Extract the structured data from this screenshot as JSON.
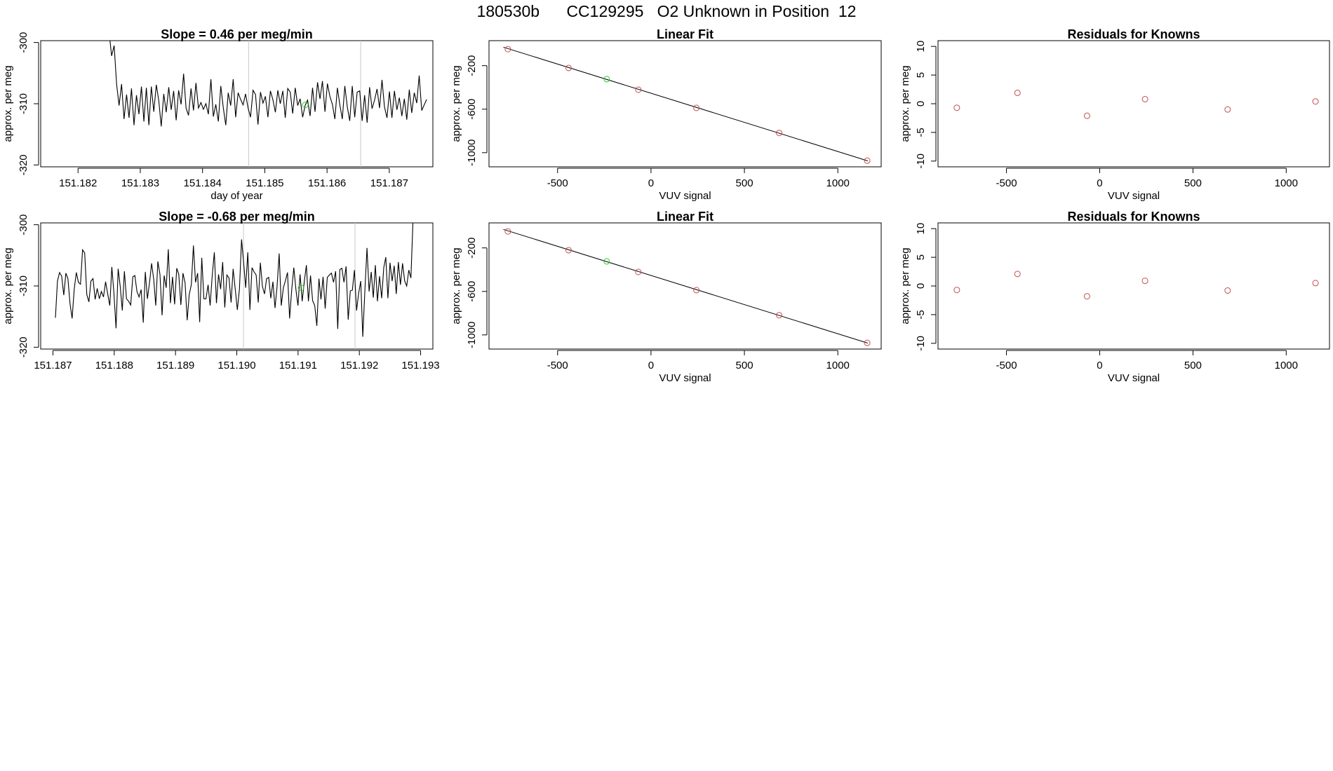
{
  "page": {
    "title": "180530b      CC129295   O2 Unknown in Position  12"
  },
  "colors": {
    "trace": "#000000",
    "known_point": "#c0504d",
    "unknown_point": "#2ecc2e",
    "divider": "#c8c8c8",
    "fit_line": "#000000"
  },
  "chart_data": [
    {
      "type": "line",
      "panel": "time-series-1",
      "title": "Slope =  0.46  per meg/min",
      "xlabel": "day of year",
      "ylabel": "approx. per meg",
      "xlim": [
        151.1814,
        151.1877
      ],
      "ylim": [
        -320.3,
        -299.7
      ],
      "xticks": [
        "151.182",
        "151.183",
        "151.184",
        "151.185",
        "151.186",
        "151.187"
      ],
      "yticks": [
        "-300",
        "-310",
        "-320"
      ],
      "x_start": 151.1825,
      "x_end": 151.1876,
      "values": [
        -298.5,
        -302.2,
        -300.5,
        -306.8,
        -310.3,
        -306.8,
        -312.5,
        -308.5,
        -312.3,
        -307.5,
        -313.5,
        -308.6,
        -311.7,
        -307.2,
        -312.9,
        -307.4,
        -313.5,
        -307.2,
        -311.3,
        -306.9,
        -309.5,
        -313.7,
        -308.4,
        -311.4,
        -307.3,
        -311.0,
        -307.9,
        -312.7,
        -307.8,
        -310.1,
        -305.1,
        -310.7,
        -311.9,
        -307.5,
        -311.1,
        -306.6,
        -310.7,
        -309.8,
        -310.9,
        -310.0,
        -311.7,
        -306.0,
        -312.1,
        -310.1,
        -312.9,
        -307.1,
        -310.6,
        -313.5,
        -308.2,
        -310.3,
        -306.0,
        -312.2,
        -308.2,
        -309.3,
        -310.2,
        -308.4,
        -310.7,
        -312.2,
        -307.8,
        -308.5,
        -313.4,
        -308.1,
        -309.9,
        -308.8,
        -312.2,
        -307.9,
        -309.3,
        -311.4,
        -307.8,
        -310.0,
        -307.9,
        -312.3,
        -307.5,
        -308.1,
        -311.6,
        -307.4,
        -310.3,
        -309.2,
        -312.2,
        -310.3,
        -309.4,
        -312.0,
        -307.4,
        -311.3,
        -306.5,
        -309.2,
        -306.3,
        -311.3,
        -306.7,
        -308.8,
        -310.1,
        -312.5,
        -307.4,
        -310.2,
        -312.5,
        -307.1,
        -310.5,
        -312.8,
        -307.1,
        -312.2,
        -308.1,
        -307.9,
        -312.8,
        -308.6,
        -313.1,
        -307.3,
        -310.8,
        -309.4,
        -307.6,
        -310.7,
        -306.1,
        -310.5,
        -312.3,
        -308.0,
        -312.3,
        -307.9,
        -311.0,
        -309.0,
        -312.0,
        -309.2,
        -312.6,
        -307.7,
        -311.5,
        -308.2,
        -309.9,
        -305.4,
        -311.1,
        -310.2,
        -309.3
      ],
      "dividers": [
        151.18474,
        151.18654
      ],
      "unknown_points": [
        [
          151.18565,
          -310.2
        ]
      ]
    },
    {
      "type": "scatter",
      "panel": "linear-fit-1",
      "title": "Linear Fit",
      "xlabel": "VUV signal",
      "ylabel": "approx. per meg",
      "xlim": [
        -867,
        1232
      ],
      "ylim": [
        -1130,
        30
      ],
      "xticks": [
        "-500",
        "0",
        "500",
        "1000"
      ],
      "yticks": [
        "-200",
        "-600",
        "-1000"
      ],
      "fit_line": [
        [
          -790,
          -30
        ],
        [
          1160,
          -1075
        ]
      ],
      "knowns": [
        [
          -766,
          -48
        ],
        [
          -441,
          -221
        ],
        [
          -68,
          -421
        ],
        [
          243,
          -588
        ],
        [
          686,
          -819
        ],
        [
          1157,
          -1073
        ]
      ],
      "unknowns": [
        [
          -237,
          -324
        ]
      ]
    },
    {
      "type": "scatter",
      "panel": "residuals-1",
      "title": "Residuals for Knowns",
      "xlabel": "VUV signal",
      "ylabel": "approx. per meg",
      "xlim": [
        -867,
        1232
      ],
      "ylim": [
        -11,
        11
      ],
      "xticks": [
        "-500",
        "0",
        "500",
        "1000"
      ],
      "yticks": [
        "10",
        "5",
        "0",
        "-5",
        "-10"
      ],
      "points": [
        [
          -766,
          -0.7
        ],
        [
          -441,
          1.9
        ],
        [
          -68,
          -2.1
        ],
        [
          243,
          0.8
        ],
        [
          686,
          -1.0
        ],
        [
          1157,
          0.4
        ]
      ]
    },
    {
      "type": "line",
      "panel": "time-series-2",
      "title": "Slope =  -0.68  per meg/min",
      "xlabel": "",
      "ylabel": "approx. per meg",
      "xlim": [
        151.1868,
        151.1932
      ],
      "ylim": [
        -320.3,
        -299.7
      ],
      "xticks": [
        "151.187",
        "151.188",
        "151.189",
        "151.190",
        "151.191",
        "151.192",
        "151.193"
      ],
      "yticks": [
        "-300",
        "-310",
        "-320"
      ],
      "x_start": 151.18704,
      "x_end": 151.19291,
      "values": [
        -315.2,
        -309.2,
        -307.8,
        -308.4,
        -311.5,
        -307.9,
        -308.8,
        -312.9,
        -315.3,
        -310.5,
        -307.8,
        -309.4,
        -309.7,
        -304.1,
        -304.6,
        -311.4,
        -312.6,
        -309.2,
        -308.8,
        -312.2,
        -310.4,
        -312.1,
        -310.9,
        -311.8,
        -309.3,
        -311.3,
        -313.2,
        -306.9,
        -311.2,
        -316.9,
        -307.2,
        -310.1,
        -314.0,
        -307.6,
        -312.1,
        -312.5,
        -313.1,
        -308.5,
        -308.3,
        -310.9,
        -311.8,
        -310.6,
        -316.0,
        -307.7,
        -312.1,
        -309.5,
        -306.3,
        -308.9,
        -313.2,
        -306.0,
        -308.1,
        -314.8,
        -308.3,
        -310.3,
        -304.0,
        -312.8,
        -308.5,
        -313.0,
        -307.1,
        -308.1,
        -313.1,
        -307.9,
        -309.5,
        -315.6,
        -311.4,
        -309.8,
        -303.4,
        -309.4,
        -307.9,
        -315.9,
        -305.4,
        -312.1,
        -312.1,
        -309.8,
        -313.2,
        -308.3,
        -304.5,
        -312.8,
        -308.1,
        -310.5,
        -306.1,
        -313.5,
        -308.2,
        -308.7,
        -312.7,
        -307.2,
        -310.5,
        -313.9,
        -310.5,
        -302.4,
        -306.1,
        -310.3,
        -304.5,
        -313.9,
        -307.0,
        -307.7,
        -308.2,
        -312.7,
        -306.2,
        -310.1,
        -311.3,
        -308.8,
        -308.6,
        -312.0,
        -309.3,
        -313.6,
        -310.1,
        -304.7,
        -313.2,
        -310.3,
        -309.1,
        -307.8,
        -315.3,
        -310.6,
        -307.0,
        -310.6,
        -313.2,
        -308.1,
        -312.5,
        -309.3,
        -306.6,
        -312.5,
        -308.3,
        -312.4,
        -313.2,
        -316.5,
        -308.8,
        -312.2,
        -308.5,
        -313.7,
        -308.6,
        -308.2,
        -307.9,
        -309.4,
        -307.6,
        -317.0,
        -307.3,
        -307.1,
        -309.4,
        -306.8,
        -315.5,
        -310.8,
        -310.7,
        -307.4,
        -314.0,
        -311.2,
        -309.2,
        -318.3,
        -310.7,
        -303.8,
        -310.9,
        -307.7,
        -311.9,
        -306.6,
        -312.5,
        -308.4,
        -312.0,
        -307.0,
        -305.3,
        -312.0,
        -306.2,
        -309.2,
        -306.7,
        -311.3,
        -306.1,
        -309.8,
        -306.3,
        -309.2,
        -310.0,
        -307.4,
        -308.7,
        -299.2,
        -297.5
      ],
      "dividers": [
        151.19011,
        151.19193
      ],
      "unknown_points": [
        [
          151.19105,
          -310.3
        ]
      ]
    },
    {
      "type": "scatter",
      "panel": "linear-fit-2",
      "title": "Linear Fit",
      "xlabel": "VUV signal",
      "ylabel": "approx. per meg",
      "xlim": [
        -867,
        1232
      ],
      "ylim": [
        -1130,
        30
      ],
      "xticks": [
        "-500",
        "0",
        "500",
        "1000"
      ],
      "yticks": [
        "-200",
        "-600",
        "-1000"
      ],
      "fit_line": [
        [
          -790,
          -30
        ],
        [
          1160,
          -1075
        ]
      ],
      "knowns": [
        [
          -766,
          -48
        ],
        [
          -441,
          -221
        ],
        [
          -68,
          -421
        ],
        [
          243,
          -588
        ],
        [
          686,
          -819
        ],
        [
          1157,
          -1073
        ]
      ],
      "unknowns": [
        [
          -237,
          -324
        ]
      ]
    },
    {
      "type": "scatter",
      "panel": "residuals-2",
      "title": "Residuals for Knowns",
      "xlabel": "VUV signal",
      "ylabel": "approx. per meg",
      "xlim": [
        -867,
        1232
      ],
      "ylim": [
        -11,
        11
      ],
      "xticks": [
        "-500",
        "0",
        "500",
        "1000"
      ],
      "yticks": [
        "10",
        "5",
        "0",
        "-5",
        "-10"
      ],
      "points": [
        [
          -766,
          -0.7
        ],
        [
          -441,
          2.1
        ],
        [
          -68,
          -1.8
        ],
        [
          243,
          0.9
        ],
        [
          686,
          -0.8
        ],
        [
          1157,
          0.5
        ]
      ]
    }
  ]
}
